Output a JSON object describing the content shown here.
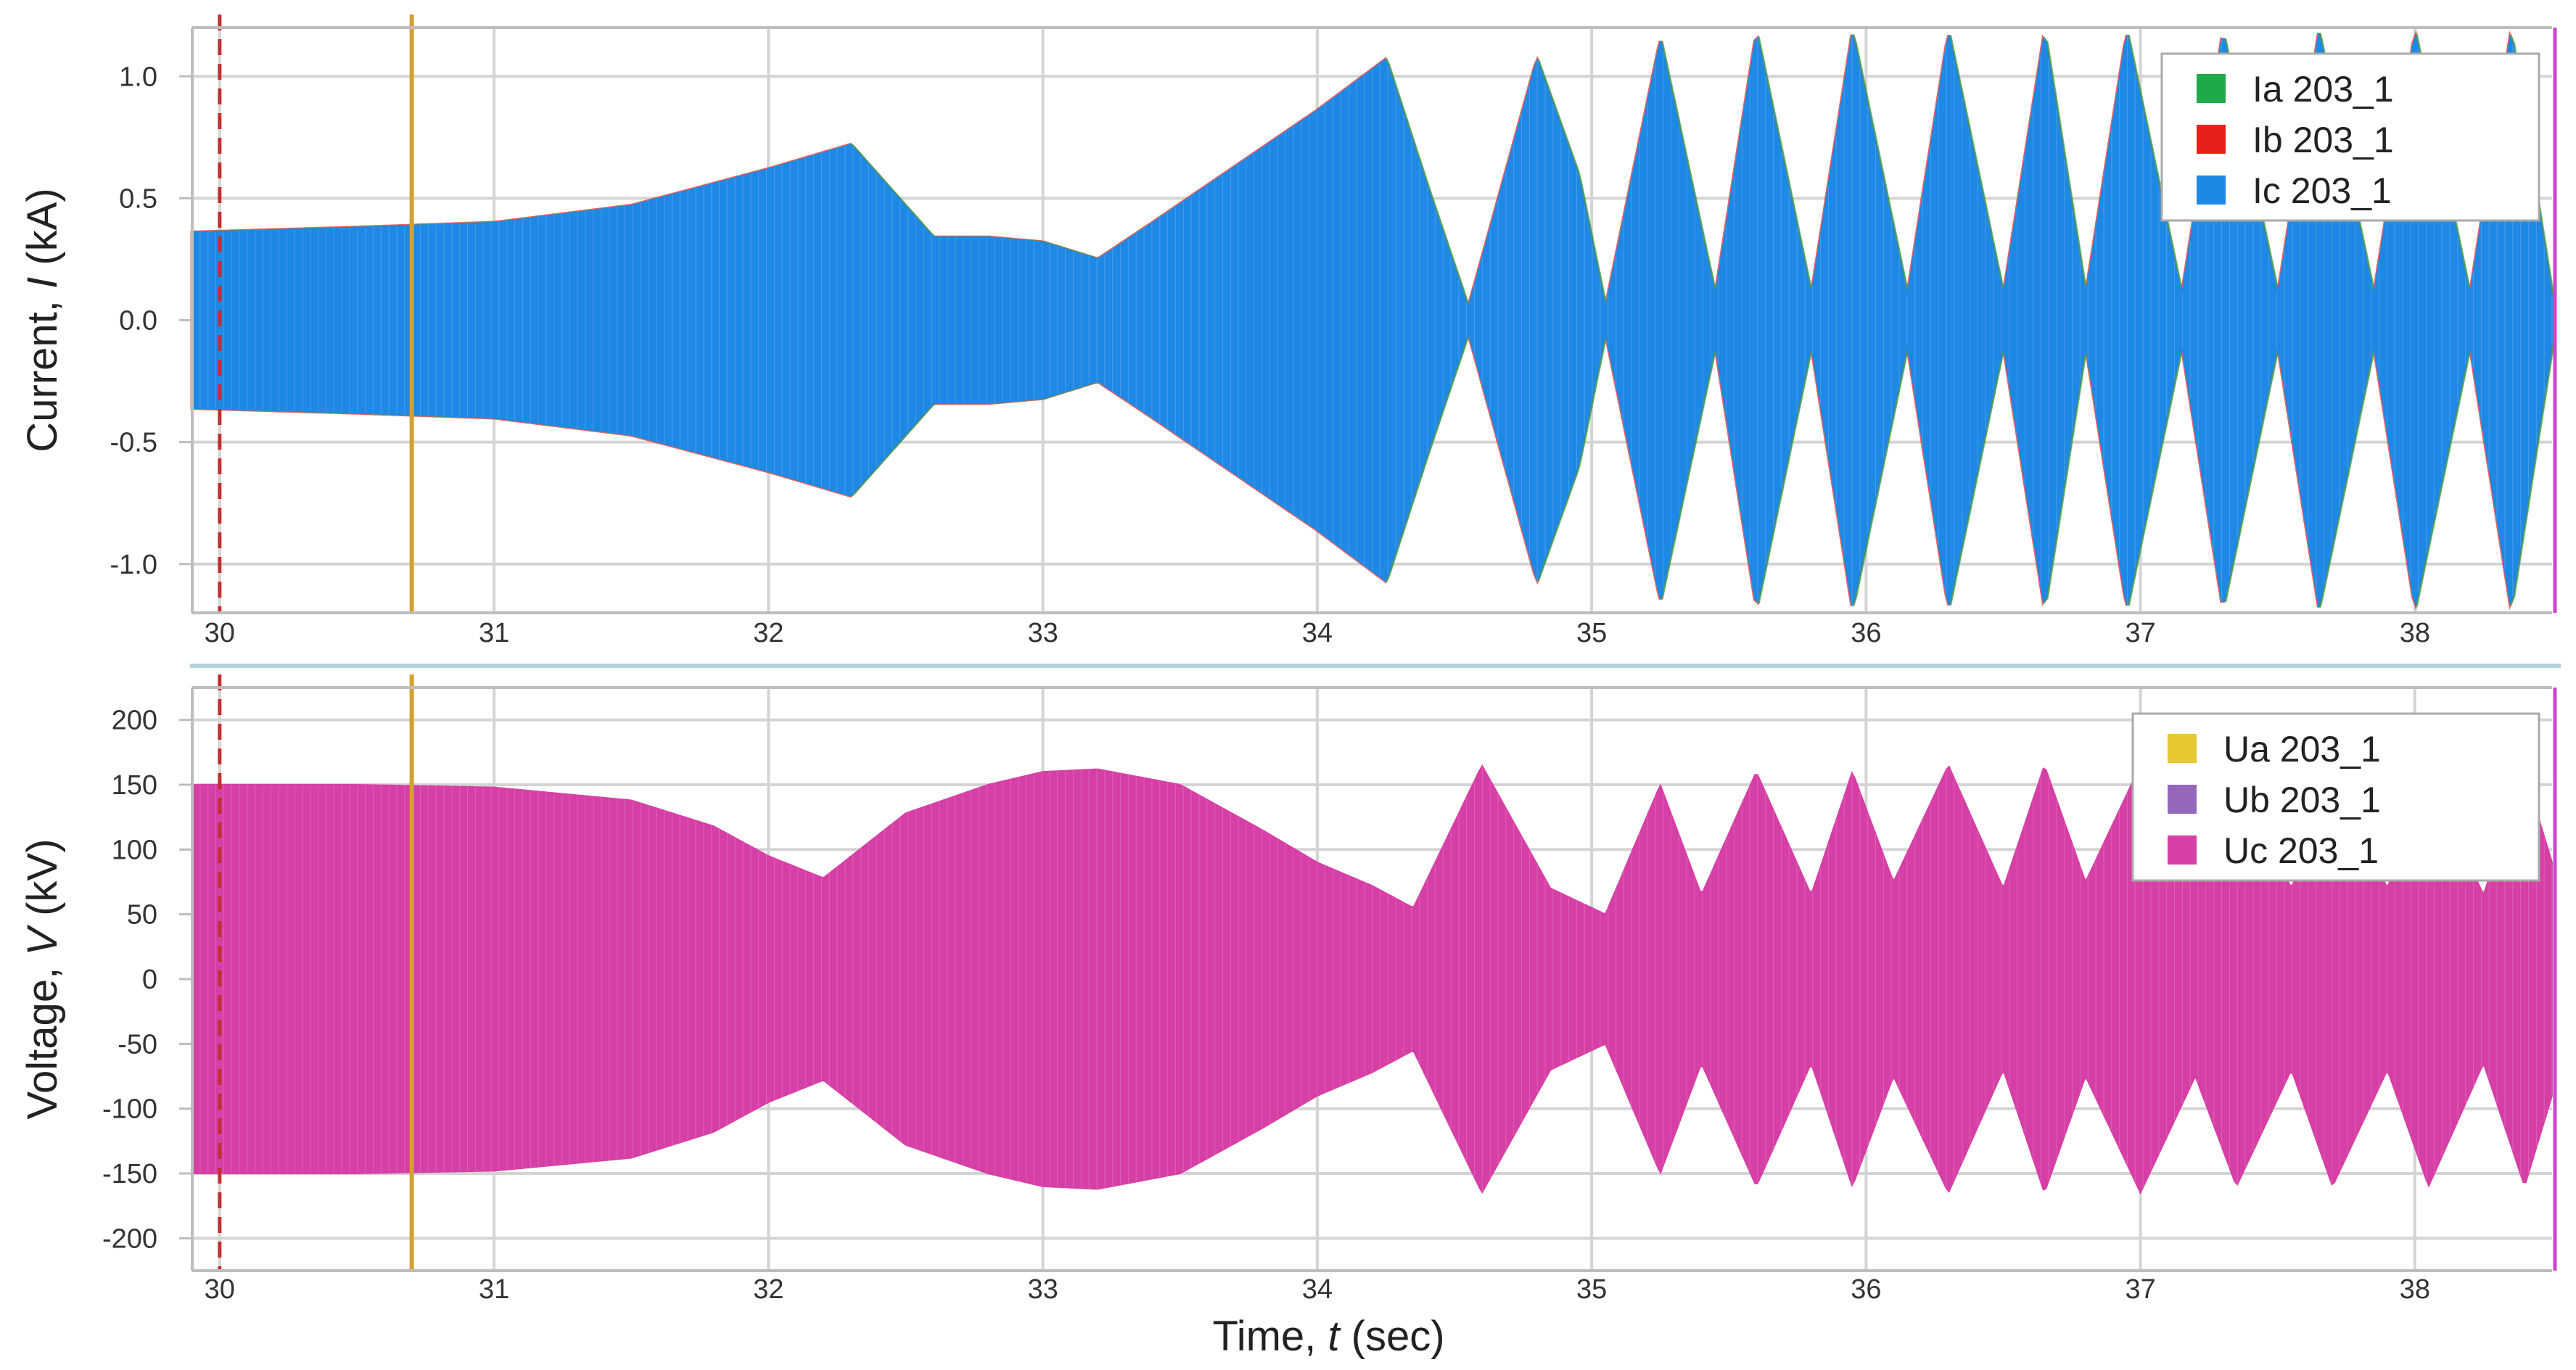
{
  "chart_data": [
    {
      "type": "line",
      "ylabel": {
        "prefix": "Current, ",
        "symbol": "I",
        "suffix": " (kA)"
      },
      "xlim": [
        29.9,
        38.5
      ],
      "ylim": [
        -1.2,
        1.2
      ],
      "x_ticks": [
        30,
        31,
        32,
        33,
        34,
        35,
        36,
        37,
        38
      ],
      "y_ticks": [
        {
          "value": 1.0,
          "label": "1.0"
        },
        {
          "value": 0.5,
          "label": "0.5"
        },
        {
          "value": 0.0,
          "label": "0.0"
        },
        {
          "value": -0.5,
          "label": "-0.5"
        },
        {
          "value": -1.0,
          "label": "-1.0"
        }
      ],
      "grid": true,
      "legend_position": "top-right",
      "markers": [
        {
          "x": 30.0,
          "style": "dashed",
          "color": "#c03030"
        },
        {
          "x": 30.7,
          "style": "solid",
          "color": "#d4a030"
        }
      ],
      "series": [
        {
          "name": "Ia 203_1",
          "color": "#1faa4a"
        },
        {
          "name": "Ib 203_1",
          "color": "#e8201a"
        },
        {
          "name": "Ic 203_1",
          "color": "#1e88e5"
        }
      ],
      "envelope": {
        "series": "Ic 203_1",
        "t": [
          29.9,
          30.5,
          31.0,
          31.5,
          32.0,
          32.3,
          32.6,
          32.8,
          33.0,
          33.2,
          33.4,
          33.7,
          34.0,
          34.25,
          34.4,
          34.55,
          34.8,
          34.95,
          35.05,
          35.25,
          35.45,
          35.6,
          35.8,
          35.95,
          36.15,
          36.3,
          36.5,
          36.65,
          36.8,
          36.95,
          37.15,
          37.3,
          37.5,
          37.65,
          37.85,
          38.0,
          38.2,
          38.35,
          38.5
        ],
        "amplitude": [
          0.36,
          0.38,
          0.4,
          0.47,
          0.62,
          0.72,
          0.34,
          0.34,
          0.32,
          0.25,
          0.4,
          0.63,
          0.86,
          1.07,
          0.55,
          0.05,
          1.07,
          0.6,
          0.05,
          1.15,
          0.1,
          1.18,
          0.1,
          1.18,
          0.1,
          1.18,
          0.1,
          1.18,
          0.1,
          1.18,
          0.1,
          1.18,
          0.1,
          1.18,
          0.1,
          1.18,
          0.1,
          1.18,
          0.1
        ]
      }
    },
    {
      "type": "line",
      "xlabel": {
        "prefix": "Time, ",
        "symbol": "t",
        "suffix": " (sec)"
      },
      "ylabel": {
        "prefix": "Voltage, ",
        "symbol": "V",
        "suffix": " (kV)"
      },
      "xlim": [
        29.9,
        38.5
      ],
      "ylim": [
        -225,
        225
      ],
      "x_ticks": [
        30,
        31,
        32,
        33,
        34,
        35,
        36,
        37,
        38
      ],
      "y_ticks": [
        {
          "value": 200,
          "label": "200"
        },
        {
          "value": 150,
          "label": "150"
        },
        {
          "value": 100,
          "label": "100"
        },
        {
          "value": 50,
          "label": "50"
        },
        {
          "value": 0,
          "label": "0"
        },
        {
          "value": -50,
          "label": "-50"
        },
        {
          "value": -100,
          "label": "-100"
        },
        {
          "value": -150,
          "label": "-150"
        },
        {
          "value": -200,
          "label": "-200"
        }
      ],
      "grid": true,
      "legend_position": "top-right",
      "markers": [
        {
          "x": 30.0,
          "style": "dashed",
          "color": "#c03030"
        },
        {
          "x": 30.7,
          "style": "solid",
          "color": "#d4a030"
        }
      ],
      "series": [
        {
          "name": "Ua 203_1",
          "color": "#e6c832"
        },
        {
          "name": "Ub 203_1",
          "color": "#9467bd"
        },
        {
          "name": "Uc 203_1",
          "color": "#d63fa5"
        }
      ],
      "envelope": {
        "series": "Uc 203_1",
        "t": [
          29.9,
          30.5,
          31.0,
          31.5,
          31.8,
          32.0,
          32.2,
          32.5,
          32.8,
          33.0,
          33.2,
          33.5,
          33.8,
          34.0,
          34.2,
          34.35,
          34.6,
          34.85,
          35.05,
          35.25,
          35.4,
          35.6,
          35.8,
          35.95,
          36.1,
          36.3,
          36.5,
          36.65,
          36.8,
          37.0,
          37.2,
          37.35,
          37.55,
          37.7,
          37.9,
          38.05,
          38.25,
          38.4,
          38.5
        ],
        "amplitude": [
          150,
          150,
          148,
          138,
          118,
          95,
          78,
          128,
          150,
          160,
          162,
          150,
          115,
          90,
          72,
          55,
          165,
          70,
          50,
          150,
          65,
          160,
          65,
          160,
          75,
          165,
          70,
          165,
          75,
          165,
          75,
          160,
          70,
          160,
          70,
          160,
          65,
          160,
          90
        ]
      }
    }
  ]
}
